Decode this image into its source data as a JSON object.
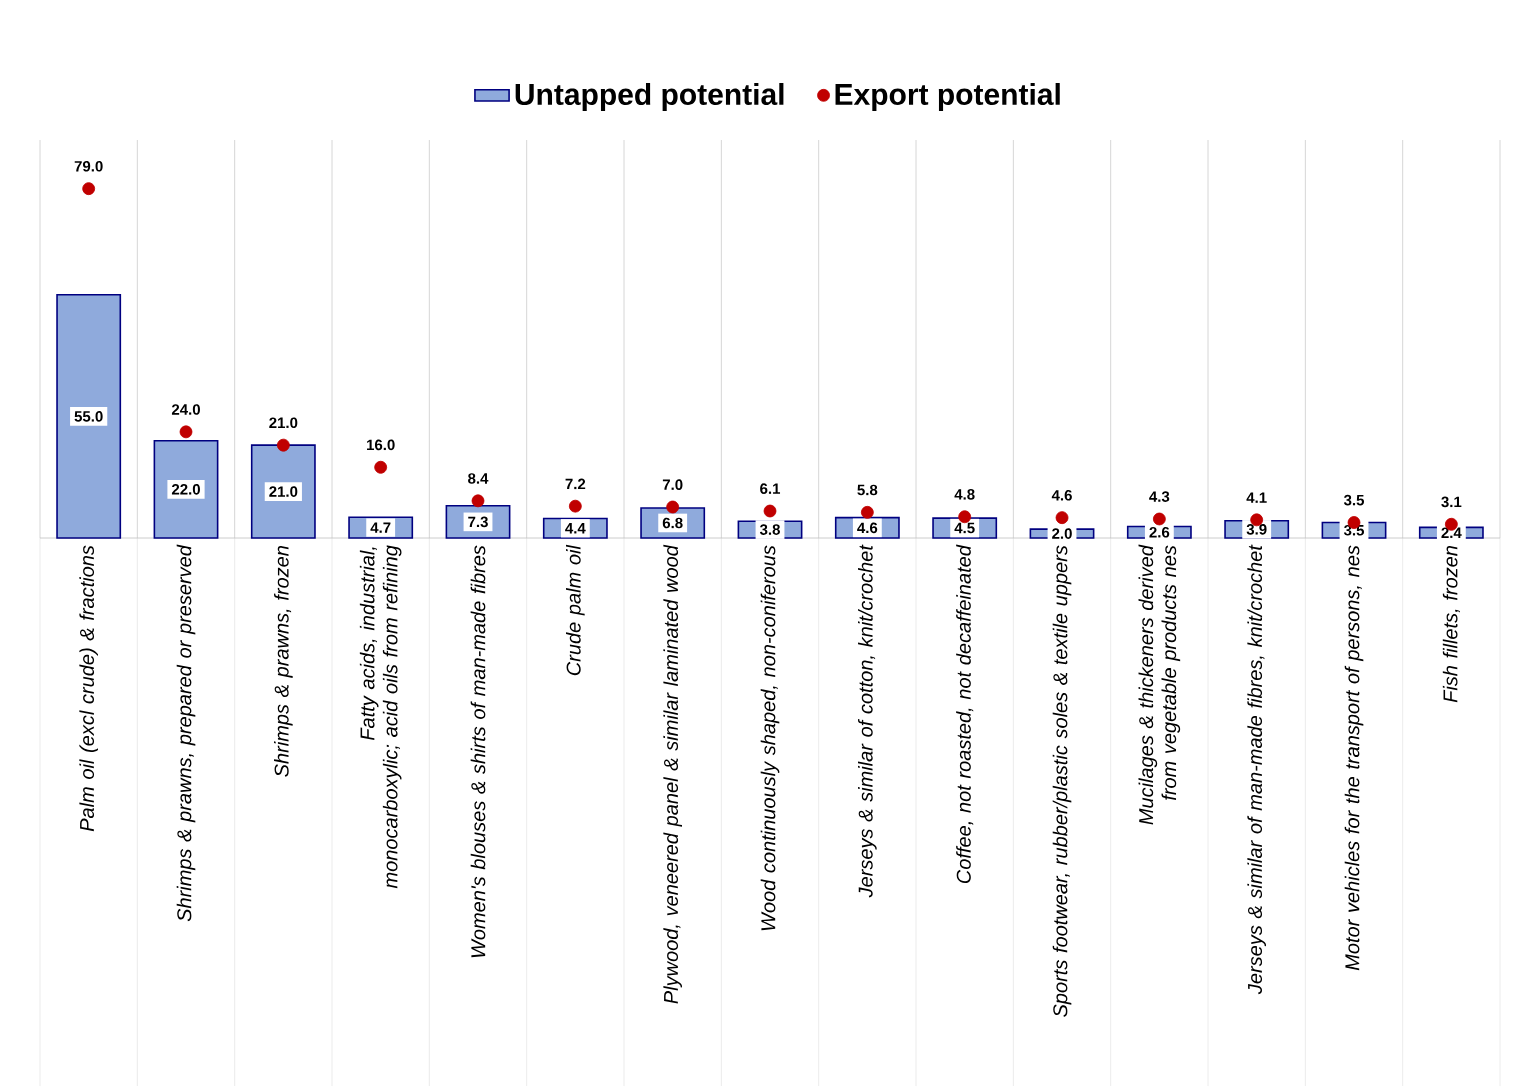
{
  "chart_data": {
    "type": "bar",
    "categories": [
      "Palm oil (excl crude) & fractions",
      "Shrimps & prawns, prepared or preserved",
      "Shrimps & prawns, frozen",
      "Fatty acids, industrial, monocarboxylic; acid oils from refining",
      "Women's blouses & shirts of man-made fibres",
      "Crude palm oil",
      "Plywood, veneered panel & similar laminated wood",
      "Wood continuously shaped, non-coniferous",
      "Jerseys & similar of cotton, knit/crochet",
      "Coffee, not roasted, not decaffeinated",
      "Sports footwear, rubber/plastic soles & textile uppers",
      "Mucilages & thickeners derived from vegetable products nes",
      "Jerseys & similar of man-made fibres, knit/crochet",
      "Motor vehicles for the transport of persons, nes",
      "Fish fillets, frozen"
    ],
    "series": [
      {
        "name": "Untapped potential",
        "color": "#8faadc",
        "values": [
          55.0,
          22.0,
          21.0,
          4.7,
          7.3,
          4.4,
          6.8,
          3.8,
          4.6,
          4.5,
          2.0,
          2.6,
          3.9,
          3.5,
          2.4
        ],
        "value_labels": [
          "55.0",
          "22.0",
          "21.0",
          "4.7",
          "7.3",
          "4.4",
          "6.8",
          "3.8",
          "4.6",
          "4.5",
          "2.0",
          "2.6",
          "3.9",
          "3.5",
          "2.4"
        ]
      },
      {
        "name": "Export potential",
        "type": "scatter",
        "marker": "circle",
        "color": "#c00000",
        "values": [
          79.0,
          24.0,
          21.0,
          16.0,
          8.4,
          7.2,
          7.0,
          6.1,
          5.8,
          4.8,
          4.6,
          4.3,
          4.1,
          3.5,
          3.1
        ],
        "value_labels": [
          "79.0",
          "24.0",
          "21.0",
          "16.0",
          "8.4",
          "7.2",
          "7.0",
          "6.1",
          "5.8",
          "4.8",
          "4.6",
          "4.3",
          "4.1",
          "3.5",
          "3.1"
        ]
      }
    ],
    "ylim": [
      0,
      90
    ],
    "grid": "x",
    "legend": "top"
  }
}
